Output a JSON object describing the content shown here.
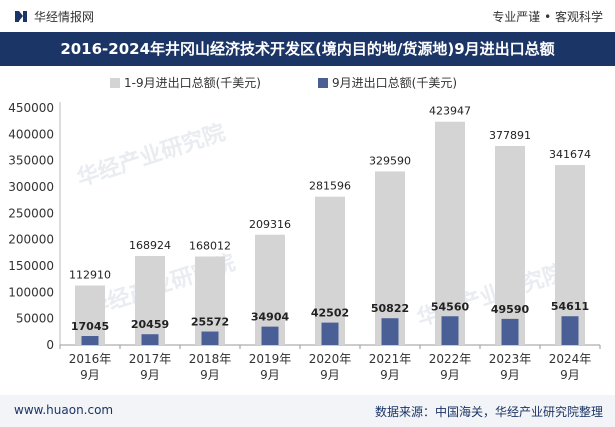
{
  "header": {
    "brand": "华经情报网",
    "tagline": "专业严谨 • 客观科学"
  },
  "title": "2016-2024年井冈山经济技术开发区(境内目的地/货源地)9月进出口总额",
  "footer": {
    "site": "www.huaon.com",
    "source": "数据来源：中国海关，华经产业研究院整理"
  },
  "watermark": "华经产业研究院",
  "colors": {
    "title_bg": "#1b3566",
    "series_ytd": "#d4d4d4",
    "series_sep": "#4a5f95"
  },
  "chart_data": {
    "type": "bar",
    "categories": [
      "2016年\n9月",
      "2017年\n9月",
      "2018年\n9月",
      "2019年\n9月",
      "2020年\n9月",
      "2021年\n9月",
      "2022年\n9月",
      "2023年\n9月",
      "2024年\n9月"
    ],
    "series": [
      {
        "name": "1-9月进出口总额(千美元)",
        "values": [
          112910,
          168924,
          168012,
          209316,
          281596,
          329590,
          423947,
          377891,
          341674
        ]
      },
      {
        "name": "9月进出口总额(千美元)",
        "values": [
          17045,
          20459,
          25572,
          34904,
          42502,
          50822,
          54560,
          49590,
          54611
        ]
      }
    ],
    "ylim": [
      0,
      450000
    ],
    "yticks": [
      0,
      50000,
      100000,
      150000,
      200000,
      250000,
      300000,
      350000,
      400000,
      450000
    ],
    "legend": "top-left",
    "grid": false
  }
}
